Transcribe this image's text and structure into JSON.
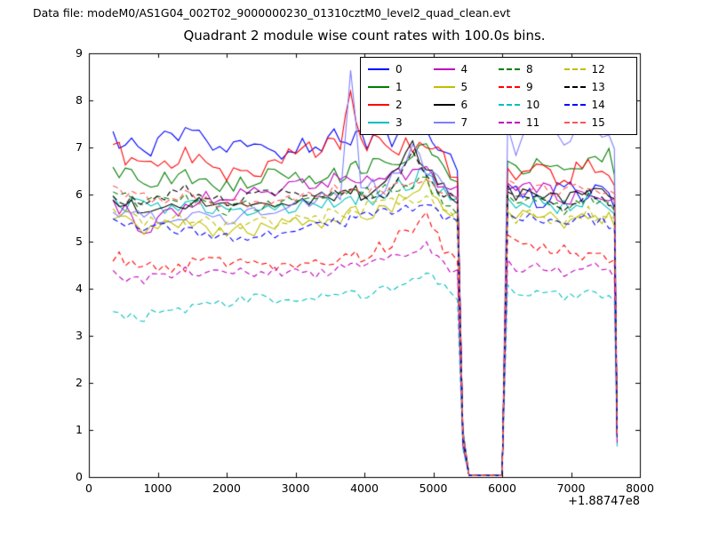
{
  "header": {
    "data_file_label": "Data file: modeM0/AS1G04_002T02_9000000230_01310cztM0_level2_quad_clean.evt"
  },
  "chart_data": {
    "type": "line",
    "title": "Quadrant 2 module wise count rates with 100.0s bins.",
    "xlabel": "",
    "ylabel": "",
    "x_offset_label": "+1.88747e8",
    "xlim": [
      0,
      8000
    ],
    "ylim": [
      0,
      9
    ],
    "x_ticks": [
      0,
      1000,
      2000,
      3000,
      4000,
      5000,
      6000,
      7000,
      8000
    ],
    "y_ticks": [
      0,
      1,
      2,
      3,
      4,
      5,
      6,
      7,
      8,
      9
    ],
    "grid": false,
    "legend_position": "upper center",
    "bin_seconds": 100.0,
    "noise_seed": 12345,
    "gap_note": "all modules drop to ~0 counts between x=5430 and x=6060 and at end x=7670",
    "anchor_x": [
      350,
      800,
      1400,
      2000,
      2600,
      3200,
      3650,
      3800,
      3950,
      4300,
      4700,
      4900,
      5150,
      5350,
      5430,
      5520,
      6000,
      6080,
      6200,
      6500,
      6900,
      7250,
      7550,
      7630,
      7670
    ],
    "series": [
      {
        "name": "0",
        "color": "#0000ff",
        "dash": "solid",
        "jitter": 0.25,
        "values": [
          7.1,
          7.0,
          7.2,
          7.0,
          6.9,
          7.1,
          7.2,
          7.3,
          7.2,
          7.2,
          7.4,
          7.4,
          6.9,
          6.6,
          0.9,
          0.03,
          0.03,
          6.3,
          6.0,
          5.9,
          6.2,
          6.0,
          5.9,
          5.8,
          0.9
        ]
      },
      {
        "name": "1",
        "color": "#007f00",
        "dash": "solid",
        "jitter": 0.18,
        "values": [
          6.5,
          6.3,
          6.4,
          6.2,
          6.4,
          6.3,
          6.4,
          6.5,
          6.6,
          6.6,
          6.9,
          7.0,
          6.6,
          6.4,
          1.0,
          0.03,
          0.03,
          6.8,
          6.5,
          6.7,
          6.4,
          6.6,
          6.9,
          6.5,
          1.0
        ]
      },
      {
        "name": "2",
        "color": "#ff0000",
        "dash": "solid",
        "jitter": 0.22,
        "values": [
          7.0,
          6.6,
          6.8,
          6.5,
          6.6,
          6.9,
          7.1,
          8.0,
          7.2,
          7.0,
          7.0,
          7.1,
          6.7,
          6.3,
          0.9,
          0.03,
          0.03,
          6.6,
          6.4,
          6.6,
          6.3,
          6.7,
          6.4,
          6.2,
          0.95
        ]
      },
      {
        "name": "3",
        "color": "#00bfbf",
        "dash": "solid",
        "jitter": 0.18,
        "values": [
          5.9,
          5.7,
          5.8,
          5.6,
          5.7,
          5.8,
          5.8,
          5.9,
          5.9,
          6.0,
          6.3,
          6.5,
          6.0,
          5.8,
          0.85,
          0.03,
          0.03,
          6.0,
          5.8,
          5.9,
          5.7,
          5.9,
          5.8,
          5.7,
          0.9
        ]
      },
      {
        "name": "4",
        "color": "#bf00bf",
        "dash": "solid",
        "jitter": 0.18,
        "values": [
          5.9,
          5.2,
          5.8,
          6.0,
          6.1,
          6.2,
          6.3,
          6.4,
          6.3,
          6.3,
          6.5,
          6.6,
          6.2,
          6.0,
          0.95,
          0.03,
          0.03,
          6.1,
          6.0,
          6.2,
          5.9,
          6.1,
          6.0,
          5.9,
          0.92
        ]
      },
      {
        "name": "5",
        "color": "#bfbf00",
        "dash": "solid",
        "jitter": 0.16,
        "values": [
          5.5,
          5.3,
          5.4,
          5.2,
          5.3,
          5.4,
          5.5,
          5.6,
          5.6,
          5.7,
          6.0,
          6.2,
          5.7,
          5.5,
          0.8,
          0.03,
          0.03,
          5.7,
          5.5,
          5.6,
          5.4,
          5.6,
          5.5,
          5.4,
          0.85
        ]
      },
      {
        "name": "6",
        "color": "#000000",
        "dash": "solid",
        "jitter": 0.15,
        "values": [
          5.9,
          5.7,
          5.8,
          5.9,
          5.8,
          5.9,
          6.0,
          6.1,
          6.0,
          6.2,
          7.0,
          6.6,
          6.1,
          5.9,
          0.9,
          0.03,
          0.03,
          6.2,
          6.0,
          6.1,
          5.9,
          6.2,
          6.0,
          5.9,
          0.9
        ]
      },
      {
        "name": "7",
        "color": "#7f7fff",
        "dash": "solid",
        "jitter": 0.18,
        "values": [
          5.7,
          5.5,
          5.6,
          5.5,
          5.6,
          5.8,
          6.0,
          8.8,
          6.2,
          6.1,
          7.0,
          6.5,
          6.2,
          6.1,
          1.0,
          0.03,
          0.03,
          7.4,
          6.9,
          7.8,
          7.0,
          7.7,
          7.1,
          6.8,
          1.0
        ]
      },
      {
        "name": "8",
        "color": "#007f00",
        "dash": "dashed",
        "jitter": 0.15,
        "values": [
          6.0,
          5.8,
          5.9,
          5.7,
          5.8,
          5.9,
          5.9,
          6.0,
          6.0,
          6.1,
          6.2,
          6.3,
          5.9,
          5.7,
          0.85,
          0.03,
          0.03,
          5.9,
          5.8,
          5.9,
          5.7,
          5.9,
          5.8,
          5.7,
          0.88
        ]
      },
      {
        "name": "9",
        "color": "#ff0000",
        "dash": "dashed",
        "jitter": 0.15,
        "values": [
          4.7,
          4.4,
          4.5,
          4.6,
          4.5,
          4.6,
          4.6,
          4.7,
          4.7,
          4.9,
          5.3,
          5.7,
          4.9,
          4.5,
          0.7,
          0.03,
          0.03,
          5.1,
          5.0,
          4.9,
          4.8,
          4.7,
          4.6,
          4.5,
          0.75
        ]
      },
      {
        "name": "10",
        "color": "#00bfbf",
        "dash": "dashed",
        "jitter": 0.12,
        "values": [
          3.5,
          3.4,
          3.6,
          3.7,
          3.8,
          3.8,
          3.9,
          3.9,
          3.9,
          4.0,
          4.2,
          4.4,
          4.0,
          3.8,
          0.6,
          0.03,
          0.03,
          4.0,
          3.9,
          4.0,
          3.8,
          3.9,
          3.8,
          3.7,
          0.65
        ]
      },
      {
        "name": "11",
        "color": "#bf00bf",
        "dash": "dashed",
        "jitter": 0.12,
        "values": [
          4.3,
          4.2,
          4.4,
          4.3,
          4.4,
          4.3,
          4.4,
          4.5,
          4.5,
          4.6,
          4.7,
          4.9,
          4.5,
          4.3,
          0.65,
          0.03,
          0.03,
          4.5,
          4.4,
          4.5,
          4.3,
          4.5,
          4.4,
          4.3,
          0.7
        ]
      },
      {
        "name": "12",
        "color": "#bfbf00",
        "dash": "dashed",
        "jitter": 0.15,
        "values": [
          5.6,
          5.4,
          5.5,
          5.3,
          5.4,
          5.5,
          5.6,
          5.7,
          5.7,
          5.8,
          5.9,
          6.0,
          5.6,
          5.4,
          0.8,
          0.03,
          0.03,
          5.6,
          5.5,
          5.6,
          5.4,
          5.6,
          5.5,
          5.4,
          0.82
        ]
      },
      {
        "name": "13",
        "color": "#000000",
        "dash": "dashed",
        "jitter": 0.15,
        "values": [
          6.0,
          5.8,
          6.1,
          5.9,
          6.0,
          5.9,
          6.0,
          6.1,
          6.0,
          6.0,
          6.9,
          6.4,
          6.0,
          5.8,
          0.88,
          0.03,
          0.03,
          6.1,
          5.9,
          6.0,
          5.8,
          6.0,
          5.9,
          5.8,
          0.9
        ]
      },
      {
        "name": "14",
        "color": "#0000ff",
        "dash": "dashed",
        "jitter": 0.15,
        "values": [
          5.4,
          5.2,
          5.3,
          5.1,
          5.2,
          5.3,
          5.4,
          5.5,
          5.5,
          5.6,
          5.7,
          5.9,
          5.5,
          5.3,
          0.75,
          0.03,
          0.03,
          5.5,
          5.4,
          5.5,
          5.3,
          5.5,
          5.4,
          5.3,
          0.8
        ]
      },
      {
        "name": "15",
        "color": "#ff5555",
        "dash": "dashed",
        "jitter": 0.15,
        "values": [
          6.1,
          5.9,
          6.0,
          5.8,
          5.9,
          6.0,
          6.1,
          6.2,
          6.1,
          6.1,
          6.3,
          6.4,
          6.0,
          5.9,
          0.9,
          0.03,
          0.03,
          6.3,
          6.1,
          6.2,
          6.0,
          6.2,
          6.1,
          6.0,
          0.92
        ]
      }
    ]
  }
}
